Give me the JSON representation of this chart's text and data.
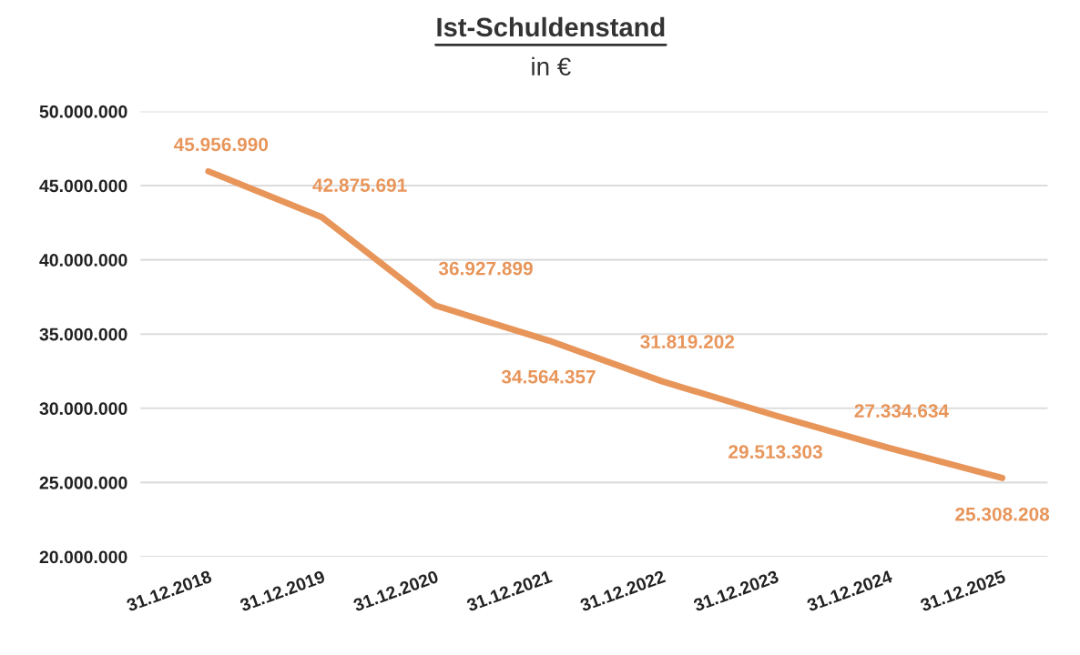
{
  "chart_data": {
    "type": "line",
    "title": "Ist-Schuldenstand",
    "subtitle": "in €",
    "categories": [
      "31.12.2018",
      "31.12.2019",
      "31.12.2020",
      "31.12.2021",
      "31.12.2022",
      "31.12.2023",
      "31.12.2024",
      "31.12.2025"
    ],
    "series": [
      {
        "color": "#e8955a",
        "values": [
          45956990,
          42875691,
          36927899,
          34564357,
          31819202,
          29513303,
          27334634,
          25308208
        ],
        "value_labels": [
          "45.956.990",
          "42.875.691",
          "36.927.899",
          "34.564.357",
          "31.819.202",
          "29.513.303",
          "27.334.634",
          "25.308.208"
        ]
      }
    ],
    "ylim": [
      20000000,
      50000000
    ],
    "yticks": [
      {
        "value": 20000000,
        "label": "20.000.000"
      },
      {
        "value": 25000000,
        "label": "25.000.000"
      },
      {
        "value": 30000000,
        "label": "30.000.000"
      },
      {
        "value": 35000000,
        "label": "35.000.000"
      },
      {
        "value": 40000000,
        "label": "40.000.000"
      },
      {
        "value": 45000000,
        "label": "45.000.000"
      },
      {
        "value": 50000000,
        "label": "50.000.000"
      }
    ],
    "grid": "y",
    "marker": "none",
    "line_style": "solid",
    "legend": false
  }
}
